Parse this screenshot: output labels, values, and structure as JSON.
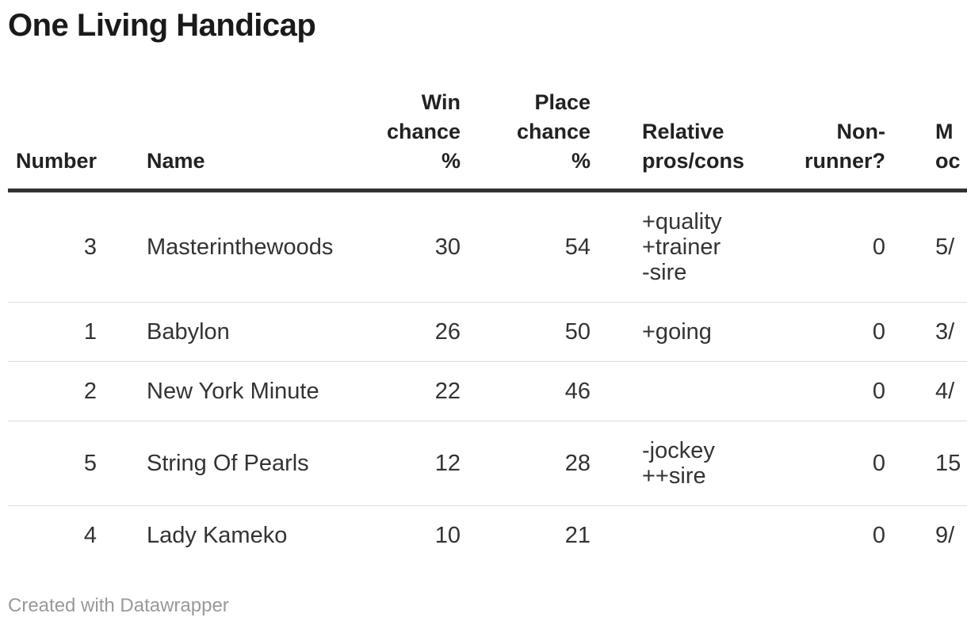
{
  "title": "One Living Handicap",
  "footer": {
    "attribution": "Created with Datawrapper"
  },
  "colors": {
    "title_text": "#1a1a1a",
    "header_text": "#222222",
    "body_text": "#333333",
    "header_rule": "#333333",
    "row_rule": "#dddddd",
    "footer_text": "#999999",
    "background": "#ffffff"
  },
  "table": {
    "columns": [
      {
        "id": "number",
        "label": "Number",
        "align": "right"
      },
      {
        "id": "name",
        "label": "Name",
        "align": "left"
      },
      {
        "id": "win",
        "label": "Win\nchance\n%",
        "align": "right"
      },
      {
        "id": "place",
        "label": "Place\nchance\n%",
        "align": "right"
      },
      {
        "id": "pros",
        "label": "Relative\npros/cons",
        "align": "left"
      },
      {
        "id": "nonrunner",
        "label": "Non-\nrunner?",
        "align": "right"
      },
      {
        "id": "odds",
        "label": "M\noc",
        "align": "left",
        "note": "truncated at right edge of viewport"
      }
    ],
    "rows": [
      {
        "number": "3",
        "name": "Masterinthewoods",
        "win": "30",
        "place": "54",
        "pros": "+quality\n+trainer\n-sire",
        "nonrunner": "0",
        "odds": "5/"
      },
      {
        "number": "1",
        "name": "Babylon",
        "win": "26",
        "place": "50",
        "pros": "+going",
        "nonrunner": "0",
        "odds": "3/"
      },
      {
        "number": "2",
        "name": "New York Minute",
        "win": "22",
        "place": "46",
        "pros": "",
        "nonrunner": "0",
        "odds": "4/"
      },
      {
        "number": "5",
        "name": "String Of Pearls",
        "win": "12",
        "place": "28",
        "pros": "-jockey\n++sire",
        "nonrunner": "0",
        "odds": "15"
      },
      {
        "number": "4",
        "name": "Lady Kameko",
        "win": "10",
        "place": "21",
        "pros": "",
        "nonrunner": "0",
        "odds": "9/"
      }
    ]
  },
  "chart_data": {
    "type": "table",
    "title": "One Living Handicap",
    "columns": [
      "Number",
      "Name",
      "Win chance %",
      "Place chance %",
      "Relative pros/cons",
      "Non-runner?",
      "M oc (truncated)"
    ],
    "rows": [
      [
        "3",
        "Masterinthewoods",
        "30",
        "54",
        "+quality +trainer -sire",
        "0",
        "5/"
      ],
      [
        "1",
        "Babylon",
        "26",
        "50",
        "+going",
        "0",
        "3/"
      ],
      [
        "2",
        "New York Minute",
        "22",
        "46",
        "",
        "0",
        "4/"
      ],
      [
        "5",
        "String Of Pearls",
        "12",
        "28",
        "-jockey ++sire",
        "0",
        "15"
      ],
      [
        "4",
        "Lady Kameko",
        "10",
        "21",
        "",
        "0",
        "9/"
      ]
    ],
    "legend_position": "none",
    "grid": "horizontal-rules",
    "attribution": "Created with Datawrapper"
  }
}
